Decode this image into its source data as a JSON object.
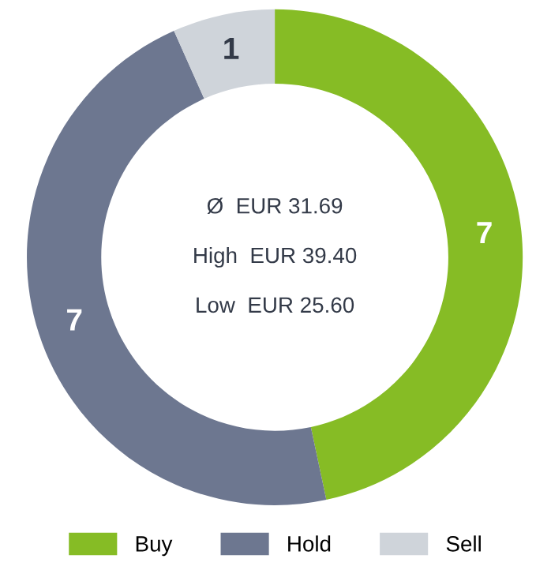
{
  "chart_data": {
    "type": "donut",
    "categories": [
      "Buy",
      "Hold",
      "Sell"
    ],
    "values": [
      7,
      7,
      1
    ],
    "colors": [
      "#86bc25",
      "#6d7790",
      "#cfd4da"
    ],
    "data_labels": true,
    "legend": "bottom",
    "annotations": [
      "Ø  EUR 31.69",
      "High  EUR 39.40",
      "Low  EUR 25.60"
    ]
  }
}
